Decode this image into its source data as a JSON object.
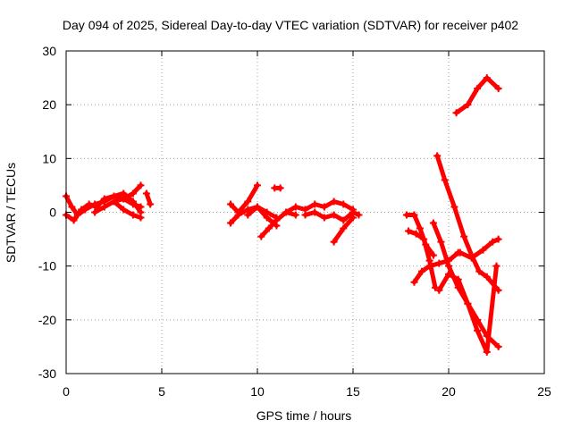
{
  "chart_data": {
    "type": "scatter",
    "title": "Day 094 of 2025, Sidereal Day-to-day VTEC variation (SDTVAR) for receiver p402",
    "xlabel": "GPS time / hours",
    "ylabel": "SDTVAR / TECUs",
    "xlim": [
      0,
      25
    ],
    "ylim": [
      -30,
      30
    ],
    "xticks": [
      "0",
      "5",
      "10",
      "15",
      "20",
      "25"
    ],
    "yticks": [
      "-30",
      "-20",
      "-10",
      "0",
      "10",
      "20",
      "30"
    ],
    "grid": true,
    "marker": "plus",
    "color": "#ff0000",
    "series": [
      {
        "x": [
          0,
          0.3,
          0.6,
          1.0,
          1.5,
          2.0,
          2.5,
          3.0,
          3.5,
          3.9
        ],
        "y": [
          3.0,
          1.0,
          -0.5,
          0.5,
          1.5,
          2.0,
          3.0,
          2.5,
          1.5,
          1.0
        ]
      },
      {
        "x": [
          0,
          0.4,
          0.8,
          1.2,
          1.6,
          2.0,
          2.5,
          3.0,
          3.5,
          3.9
        ],
        "y": [
          -0.5,
          -1.5,
          0.5,
          1.5,
          1.0,
          2.5,
          3.0,
          3.5,
          2.0,
          0.0
        ]
      },
      {
        "x": [
          1.5,
          2.0,
          2.5,
          3.0,
          3.5,
          3.9
        ],
        "y": [
          0.0,
          1.0,
          2.0,
          2.5,
          3.5,
          5.0
        ]
      },
      {
        "x": [
          2.5,
          3.0,
          3.5,
          3.9
        ],
        "y": [
          2.0,
          0.5,
          -0.5,
          -1.0
        ]
      },
      {
        "x": [
          4.2,
          4.4
        ],
        "y": [
          3.5,
          1.5
        ]
      },
      {
        "x": [
          8.6,
          9.0,
          9.5,
          10.0
        ],
        "y": [
          1.5,
          0.0,
          2.0,
          5.0
        ]
      },
      {
        "x": [
          8.6,
          9.0,
          9.5,
          10.0,
          10.5,
          11.0
        ],
        "y": [
          -2.0,
          -0.5,
          0.5,
          1.0,
          -1.0,
          -2.5
        ]
      },
      {
        "x": [
          9.5,
          10.0,
          10.5,
          11.0
        ],
        "y": [
          -0.5,
          1.0,
          0.0,
          -1.0
        ]
      },
      {
        "x": [
          10.2,
          10.6,
          11.0,
          11.5,
          12.0
        ],
        "y": [
          -4.5,
          -3.0,
          -1.5,
          0.0,
          -0.5
        ]
      },
      {
        "x": [
          10.9,
          11.2
        ],
        "y": [
          4.5,
          4.5
        ]
      },
      {
        "x": [
          11.5,
          12.0,
          12.5,
          13.0,
          13.5,
          14.0,
          14.5,
          15.0
        ],
        "y": [
          0.0,
          1.0,
          0.5,
          1.5,
          1.0,
          2.0,
          1.5,
          0.5
        ]
      },
      {
        "x": [
          12.5,
          13.0,
          13.5,
          14.0,
          14.5,
          15.0,
          15.3
        ],
        "y": [
          -0.5,
          0.0,
          -1.0,
          -0.5,
          -1.5,
          0.0,
          -0.5
        ]
      },
      {
        "x": [
          14.0,
          14.5,
          15.0
        ],
        "y": [
          -5.5,
          -3.0,
          -1.0
        ]
      },
      {
        "x": [
          17.8,
          18.2,
          18.5,
          18.8,
          19.2
        ],
        "y": [
          -0.5,
          -0.5,
          -3.0,
          -6.0,
          -8.0
        ]
      },
      {
        "x": [
          17.9,
          18.3,
          18.7,
          19.0,
          19.3
        ],
        "y": [
          -3.5,
          -4.0,
          -5.0,
          -9.0,
          -14.0
        ]
      },
      {
        "x": [
          18.2,
          18.6,
          19.0,
          19.5,
          20.0,
          20.5
        ],
        "y": [
          -13.0,
          -11.0,
          -10.0,
          -9.5,
          -9.0,
          -7.5
        ]
      },
      {
        "x": [
          19.5,
          20.0,
          20.5,
          21.0,
          21.5,
          22.0,
          22.5
        ],
        "y": [
          -14.5,
          -11.5,
          -12.5,
          -17.0,
          -22.0,
          -26.0,
          -10.0
        ]
      },
      {
        "x": [
          19.4,
          19.8,
          20.3,
          20.8,
          21.2,
          21.6,
          22.0,
          22.6
        ],
        "y": [
          10.5,
          6.0,
          1.0,
          -4.5,
          -8.0,
          -11.0,
          -12.0,
          -14.5
        ]
      },
      {
        "x": [
          19.2,
          19.6,
          20.0,
          20.5,
          21.0,
          21.5,
          22.0,
          22.6
        ],
        "y": [
          -2.0,
          -5.5,
          -10.0,
          -14.0,
          -17.0,
          -20.0,
          -23.0,
          -25.0
        ]
      },
      {
        "x": [
          20.6,
          21.2,
          21.8,
          22.3,
          22.6
        ],
        "y": [
          -7.5,
          -8.5,
          -7.0,
          -5.5,
          -5.0
        ]
      },
      {
        "x": [
          20.4,
          21.0,
          21.5,
          22.0,
          22.6
        ],
        "y": [
          18.5,
          20.0,
          23.0,
          25.0,
          23.0
        ]
      }
    ]
  }
}
